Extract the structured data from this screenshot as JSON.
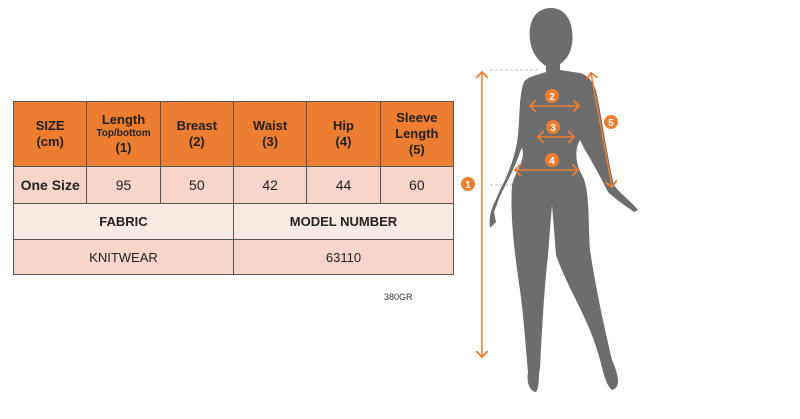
{
  "table": {
    "headers": [
      {
        "main": "SIZE",
        "sub": "",
        "num": "(cm)"
      },
      {
        "main": "Length",
        "sub": "Top/bottom",
        "num": "(1)"
      },
      {
        "main": "Breast",
        "sub": "",
        "num": "(2)"
      },
      {
        "main": "Waist",
        "sub": "",
        "num": "(3)"
      },
      {
        "main": "Hip",
        "sub": "",
        "num": "(4)"
      },
      {
        "main": "Sleeve Length",
        "sub": "",
        "num": "(5)"
      }
    ],
    "size_row": {
      "label": "One Size",
      "values": [
        "95",
        "50",
        "42",
        "44",
        "60"
      ]
    },
    "fabric_label": "FABRIC",
    "model_label": "MODEL NUMBER",
    "fabric_value": "KNITWEAR",
    "model_value": "63110"
  },
  "code": "380GR",
  "figure": {
    "markers": [
      "1",
      "2",
      "3",
      "4",
      "5"
    ],
    "accent": "#ED7D31",
    "silhouette": "#6d6d6d"
  }
}
